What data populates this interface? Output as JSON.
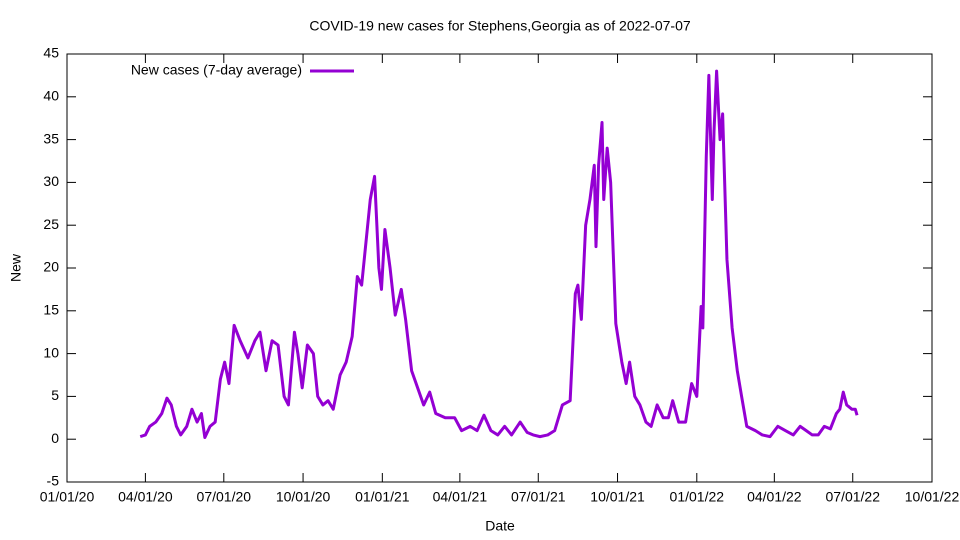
{
  "chart_data": {
    "type": "line",
    "title": "COVID-19 new cases for Stephens,Georgia as of 2022-07-07",
    "x_label": "Date",
    "y_label": "New",
    "xlim": [
      "2020-01-01",
      "2022-10-01"
    ],
    "xticks": [
      {
        "value": "2020-01-01",
        "label": "01/01/20"
      },
      {
        "value": "2020-04-01",
        "label": "04/01/20"
      },
      {
        "value": "2020-07-01",
        "label": "07/01/20"
      },
      {
        "value": "2020-10-01",
        "label": "10/01/20"
      },
      {
        "value": "2021-01-01",
        "label": "01/01/21"
      },
      {
        "value": "2021-04-01",
        "label": "04/01/21"
      },
      {
        "value": "2021-07-01",
        "label": "07/01/21"
      },
      {
        "value": "2021-10-01",
        "label": "10/01/21"
      },
      {
        "value": "2022-01-01",
        "label": "01/01/22"
      },
      {
        "value": "2022-04-01",
        "label": "04/01/22"
      },
      {
        "value": "2022-07-01",
        "label": "07/01/22"
      },
      {
        "value": "2022-10-01",
        "label": "10/01/22"
      }
    ],
    "ylim": [
      -5,
      45
    ],
    "yticks": [
      -5,
      0,
      5,
      10,
      15,
      20,
      25,
      30,
      35,
      40,
      45
    ],
    "grid": false,
    "legend": "upper left",
    "x": [
      "2020-03-26",
      "2020-04-01",
      "2020-04-06",
      "2020-04-13",
      "2020-04-20",
      "2020-04-26",
      "2020-05-01",
      "2020-05-07",
      "2020-05-12",
      "2020-05-19",
      "2020-05-25",
      "2020-05-31",
      "2020-06-05",
      "2020-06-09",
      "2020-06-15",
      "2020-06-21",
      "2020-06-27",
      "2020-07-02",
      "2020-07-07",
      "2020-07-13",
      "2020-07-20",
      "2020-07-29",
      "2020-08-06",
      "2020-08-12",
      "2020-08-19",
      "2020-08-26",
      "2020-09-02",
      "2020-09-09",
      "2020-09-14",
      "2020-09-21",
      "2020-09-25",
      "2020-09-30",
      "2020-10-06",
      "2020-10-13",
      "2020-10-18",
      "2020-10-24",
      "2020-10-30",
      "2020-11-05",
      "2020-11-13",
      "2020-11-20",
      "2020-11-27",
      "2020-12-03",
      "2020-12-08",
      "2020-12-13",
      "2020-12-18",
      "2020-12-23",
      "2020-12-28",
      "2020-12-31",
      "2021-01-04",
      "2021-01-10",
      "2021-01-16",
      "2021-01-23",
      "2021-01-28",
      "2021-02-04",
      "2021-02-11",
      "2021-02-18",
      "2021-02-25",
      "2021-03-04",
      "2021-03-15",
      "2021-03-26",
      "2021-04-03",
      "2021-04-13",
      "2021-04-21",
      "2021-04-29",
      "2021-05-07",
      "2021-05-15",
      "2021-05-23",
      "2021-05-31",
      "2021-06-10",
      "2021-06-18",
      "2021-06-25",
      "2021-07-03",
      "2021-07-12",
      "2021-07-20",
      "2021-07-29",
      "2021-08-07",
      "2021-08-13",
      "2021-08-16",
      "2021-08-20",
      "2021-08-25",
      "2021-08-30",
      "2021-09-04",
      "2021-09-06",
      "2021-09-09",
      "2021-09-13",
      "2021-09-15",
      "2021-09-19",
      "2021-09-23",
      "2021-09-29",
      "2021-10-06",
      "2021-10-11",
      "2021-10-15",
      "2021-10-21",
      "2021-10-27",
      "2021-11-03",
      "2021-11-09",
      "2021-11-16",
      "2021-11-23",
      "2021-11-29",
      "2021-12-04",
      "2021-12-11",
      "2021-12-19",
      "2021-12-26",
      "2022-01-01",
      "2022-01-06",
      "2022-01-08",
      "2022-01-12",
      "2022-01-15",
      "2022-01-19",
      "2022-01-21",
      "2022-01-24",
      "2022-01-28",
      "2022-01-31",
      "2022-02-05",
      "2022-02-11",
      "2022-02-17",
      "2022-02-22",
      "2022-02-28",
      "2022-03-10",
      "2022-03-18",
      "2022-03-27",
      "2022-04-05",
      "2022-04-14",
      "2022-04-23",
      "2022-05-01",
      "2022-05-08",
      "2022-05-15",
      "2022-05-22",
      "2022-05-29",
      "2022-06-05",
      "2022-06-12",
      "2022-06-16",
      "2022-06-20",
      "2022-06-24",
      "2022-06-30",
      "2022-07-04",
      "2022-07-06"
    ],
    "series": [
      {
        "name": "New cases (7-day average)",
        "color": "#9400d3",
        "values": [
          0.3,
          0.5,
          1.5,
          2,
          3,
          4.8,
          4,
          1.5,
          0.5,
          1.5,
          3.5,
          2,
          3,
          0.2,
          1.5,
          2,
          7,
          9,
          6.5,
          13.3,
          11.5,
          9.5,
          11.5,
          12.5,
          8,
          11.5,
          11,
          5,
          4,
          12.5,
          10,
          6,
          11,
          10,
          5,
          4,
          4.5,
          3.5,
          7.5,
          9,
          12,
          19,
          18,
          23,
          28,
          30.7,
          20,
          17.5,
          24.5,
          20,
          14.5,
          17.5,
          14,
          8,
          6,
          4,
          5.5,
          3,
          2.5,
          2.5,
          1,
          1.5,
          1,
          2.8,
          1,
          0.5,
          1.5,
          0.5,
          2,
          0.8,
          0.5,
          0.3,
          0.5,
          1,
          4,
          4.5,
          17,
          18,
          14,
          25,
          28,
          32,
          22.5,
          32,
          37,
          28,
          34,
          30,
          13.5,
          9,
          6.5,
          9,
          5,
          4,
          2,
          1.5,
          4,
          2.5,
          2.5,
          4.5,
          2,
          2,
          6.5,
          5,
          15.5,
          13,
          33,
          42.5,
          28,
          36,
          43,
          35,
          38,
          21,
          13,
          8,
          5,
          1.5,
          1,
          0.5,
          0.3,
          1.5,
          1,
          0.5,
          1.5,
          1,
          0.5,
          0.5,
          1.5,
          1.2,
          3,
          3.5,
          5.5,
          4,
          3.5,
          3.5,
          2.8
        ]
      }
    ]
  }
}
